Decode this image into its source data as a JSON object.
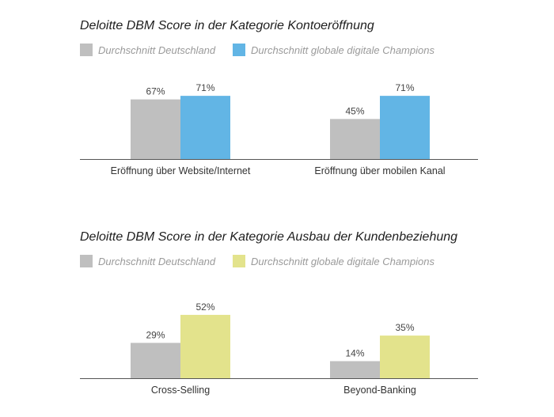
{
  "colors": {
    "germany": "#bfbfbf",
    "champions_blue": "#62b5e5",
    "champions_yellow": "#e3e38c",
    "axis": "#555555"
  },
  "chart_data": [
    {
      "type": "bar",
      "title": "Deloitte DBM Score in der Kategorie Kontoeröffnung",
      "categories": [
        "Eröffnung über Website/Internet",
        "Eröffnung über mobilen Kanal"
      ],
      "series": [
        {
          "name": "Durchschnitt Deutschland",
          "values": [
            67,
            45
          ],
          "labels": [
            "67%",
            "45%"
          ],
          "color": "#bfbfbf"
        },
        {
          "name": "Durchschnitt globale digitale Champions",
          "values": [
            71,
            71
          ],
          "labels": [
            "71%",
            "71%"
          ],
          "color": "#62b5e5"
        }
      ],
      "ylim": [
        0,
        100
      ],
      "unit": "%",
      "grid": false,
      "legend": "top-left"
    },
    {
      "type": "bar",
      "title": "Deloitte DBM Score in der Kategorie Ausbau der Kundenbeziehung",
      "categories": [
        "Cross-Selling",
        "Beyond-Banking"
      ],
      "series": [
        {
          "name": "Durchschnitt Deutschland",
          "values": [
            29,
            14
          ],
          "labels": [
            "29%",
            "14%"
          ],
          "color": "#bfbfbf"
        },
        {
          "name": "Durchschnitt globale digitale Champions",
          "values": [
            52,
            35
          ],
          "labels": [
            "52%",
            "35%"
          ],
          "color": "#e3e38c"
        }
      ],
      "ylim": [
        0,
        100
      ],
      "unit": "%",
      "grid": false,
      "legend": "top-left"
    }
  ]
}
